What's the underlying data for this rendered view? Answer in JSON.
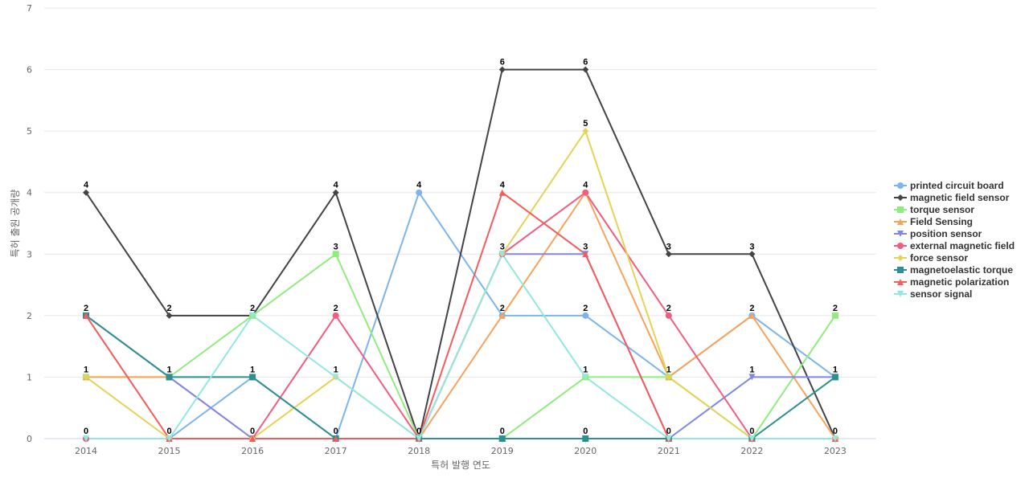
{
  "chart_data": {
    "type": "line",
    "title": "",
    "xlabel": "특허 발행 연도",
    "ylabel": "특허 출원 공개량",
    "x": [
      "2014",
      "2015",
      "2016",
      "2017",
      "2018",
      "2019",
      "2020",
      "2021",
      "2022",
      "2023"
    ],
    "ylim": [
      0,
      7
    ],
    "yticks": [
      "0",
      "1",
      "2",
      "3",
      "4",
      "5",
      "6",
      "7"
    ],
    "grid": true,
    "legend_position": "right",
    "series": [
      {
        "name": "printed circuit board",
        "color": "#7cb5ec",
        "marker": "circle",
        "values": [
          0,
          0,
          1,
          0,
          4,
          2,
          2,
          1,
          2,
          1
        ]
      },
      {
        "name": "magnetic field sensor",
        "color": "#434348",
        "marker": "diamond",
        "values": [
          4,
          2,
          2,
          4,
          0,
          6,
          6,
          3,
          3,
          0
        ]
      },
      {
        "name": "torque sensor",
        "color": "#90ed7d",
        "marker": "square",
        "values": [
          1,
          1,
          2,
          3,
          0,
          0,
          1,
          1,
          0,
          2
        ]
      },
      {
        "name": "Field Sensing",
        "color": "#f7a35c",
        "marker": "triangle",
        "values": [
          1,
          1,
          0,
          0,
          0,
          2,
          4,
          1,
          2,
          0
        ]
      },
      {
        "name": "position sensor",
        "color": "#8085e9",
        "marker": "triangle-down",
        "values": [
          2,
          1,
          0,
          0,
          0,
          3,
          3,
          0,
          1,
          1
        ]
      },
      {
        "name": "external magnetic field",
        "color": "#f15c80",
        "marker": "circle",
        "values": [
          0,
          0,
          0,
          2,
          0,
          3,
          4,
          2,
          0,
          0
        ]
      },
      {
        "name": "force sensor",
        "color": "#e4d354",
        "marker": "diamond",
        "values": [
          1,
          0,
          0,
          1,
          0,
          3,
          5,
          1,
          0,
          0
        ]
      },
      {
        "name": "magnetoelastic torque",
        "color": "#2b908f",
        "marker": "square",
        "values": [
          2,
          1,
          1,
          0,
          0,
          0,
          0,
          0,
          0,
          1
        ]
      },
      {
        "name": "magnetic polarization",
        "color": "#f45b5b",
        "marker": "triangle",
        "values": [
          2,
          0,
          0,
          0,
          0,
          4,
          3,
          0,
          0,
          0
        ]
      },
      {
        "name": "sensor signal",
        "color": "#91e8e1",
        "marker": "triangle-down",
        "values": [
          0,
          0,
          2,
          1,
          0,
          3,
          1,
          0,
          0,
          0
        ]
      }
    ],
    "data_labels": [
      {
        "x": "2014",
        "text": "4",
        "value": 4
      },
      {
        "x": "2014",
        "text": "2",
        "value": 2
      },
      {
        "x": "2014",
        "text": "1",
        "value": 1
      },
      {
        "x": "2014",
        "text": "0",
        "value": 0
      },
      {
        "x": "2015",
        "text": "2",
        "value": 2
      },
      {
        "x": "2015",
        "text": "1",
        "value": 1
      },
      {
        "x": "2015",
        "text": "0",
        "value": 0
      },
      {
        "x": "2016",
        "text": "2",
        "value": 2
      },
      {
        "x": "2016",
        "text": "1",
        "value": 1
      },
      {
        "x": "2016",
        "text": "0",
        "value": 0
      },
      {
        "x": "2017",
        "text": "4",
        "value": 4
      },
      {
        "x": "2017",
        "text": "3",
        "value": 3
      },
      {
        "x": "2017",
        "text": "2",
        "value": 2
      },
      {
        "x": "2017",
        "text": "1",
        "value": 1
      },
      {
        "x": "2017",
        "text": "0",
        "value": 0
      },
      {
        "x": "2018",
        "text": "4",
        "value": 4
      },
      {
        "x": "2018",
        "text": "0",
        "value": 0
      },
      {
        "x": "2019",
        "text": "6",
        "value": 6
      },
      {
        "x": "2019",
        "text": "4",
        "value": 4
      },
      {
        "x": "2019",
        "text": "3",
        "value": 3
      },
      {
        "x": "2019",
        "text": "2",
        "value": 2
      },
      {
        "x": "2019",
        "text": "0",
        "value": 0
      },
      {
        "x": "2020",
        "text": "6",
        "value": 6
      },
      {
        "x": "2020",
        "text": "5",
        "value": 5
      },
      {
        "x": "2020",
        "text": "4",
        "value": 4
      },
      {
        "x": "2020",
        "text": "3",
        "value": 3
      },
      {
        "x": "2020",
        "text": "2",
        "value": 2
      },
      {
        "x": "2020",
        "text": "1",
        "value": 1
      },
      {
        "x": "2020",
        "text": "0",
        "value": 0
      },
      {
        "x": "2021",
        "text": "3",
        "value": 3
      },
      {
        "x": "2021",
        "text": "2",
        "value": 2
      },
      {
        "x": "2021",
        "text": "1",
        "value": 1
      },
      {
        "x": "2021",
        "text": "0",
        "value": 0
      },
      {
        "x": "2022",
        "text": "3",
        "value": 3
      },
      {
        "x": "2022",
        "text": "2",
        "value": 2
      },
      {
        "x": "2022",
        "text": "1",
        "value": 1
      },
      {
        "x": "2022",
        "text": "0",
        "value": 0
      },
      {
        "x": "2023",
        "text": "2",
        "value": 2
      },
      {
        "x": "2023",
        "text": "1",
        "value": 1
      },
      {
        "x": "2023",
        "text": "0",
        "value": 0
      }
    ]
  }
}
